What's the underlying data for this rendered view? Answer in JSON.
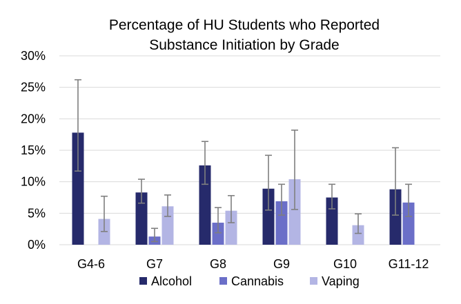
{
  "chart_data": {
    "type": "bar",
    "title": [
      "Percentage of HU Students who Reported",
      "Substance Initiation by Grade"
    ],
    "xlabel": "",
    "ylabel": "",
    "categories": [
      "G4-6",
      "G7",
      "G8",
      "G9",
      "G10",
      "G11-12"
    ],
    "ylim": [
      0,
      30
    ],
    "yticks": [
      0,
      5,
      10,
      15,
      20,
      25,
      30
    ],
    "ytick_labels": [
      "0%",
      "5%",
      "10%",
      "15%",
      "20%",
      "25%",
      "30%"
    ],
    "grid": true,
    "legend_position": "bottom",
    "series": [
      {
        "name": "Alcohol",
        "color": "#262a6b",
        "values": [
          17.8,
          8.3,
          12.6,
          8.9,
          7.5,
          8.8
        ],
        "err_low": [
          11.7,
          6.6,
          9.6,
          5.5,
          5.7,
          4.7
        ],
        "err_high": [
          26.2,
          10.4,
          16.4,
          14.2,
          9.6,
          15.4
        ]
      },
      {
        "name": "Cannabis",
        "color": "#6b6fc8",
        "values": [
          null,
          1.3,
          3.5,
          6.9,
          null,
          6.7
        ],
        "err_low": [
          null,
          0.5,
          1.9,
          4.7,
          null,
          4.5
        ],
        "err_high": [
          null,
          2.6,
          5.9,
          9.6,
          null,
          9.6
        ]
      },
      {
        "name": "Vaping",
        "color": "#b3b5e4",
        "values": [
          4.1,
          6.1,
          5.4,
          10.4,
          3.1,
          null
        ],
        "err_low": [
          2.1,
          4.5,
          3.5,
          5.6,
          1.8,
          null
        ],
        "err_high": [
          7.7,
          7.9,
          7.8,
          18.2,
          4.9,
          null
        ]
      }
    ]
  }
}
